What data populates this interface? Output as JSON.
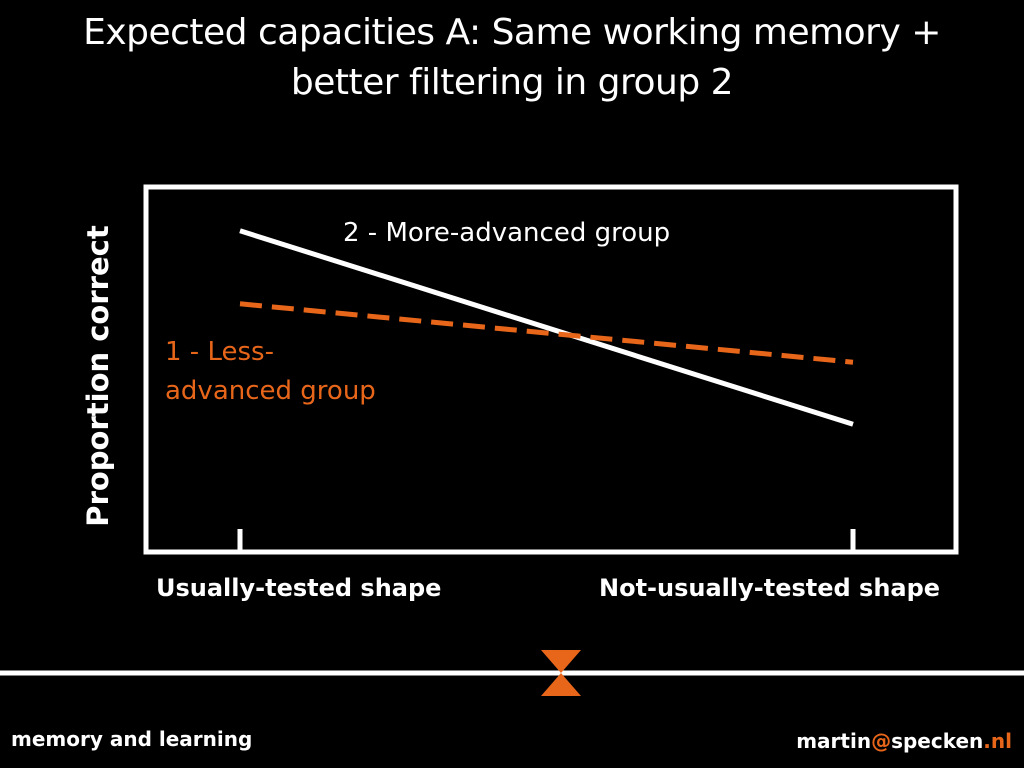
{
  "slide": {
    "title_line1": "Expected capacities A: Same working memory +",
    "title_line2": "better filtering in group 2"
  },
  "colors": {
    "background": "#000000",
    "line_group2": "#ffffff",
    "line_group1": "#e8661a"
  },
  "chart_data": {
    "type": "line",
    "ylabel": "Proportion correct",
    "categories": [
      "Usually-tested shape",
      "Not-usually-tested shape"
    ],
    "series": [
      {
        "name": "2 - More-advanced group",
        "style": "solid",
        "color": "#ffffff",
        "values": [
          0.88,
          0.35
        ]
      },
      {
        "name_line1": "1 - Less-",
        "name_line2": "advanced group",
        "style": "dashed",
        "color": "#e8661a",
        "values": [
          0.68,
          0.52
        ]
      }
    ],
    "ylim": [
      0,
      1
    ],
    "grid": false
  },
  "footer": {
    "left": "memory and learning",
    "email_user": "martin",
    "email_at": "@",
    "email_domain": "specken",
    "email_dot": ".",
    "email_tld": "nl"
  }
}
